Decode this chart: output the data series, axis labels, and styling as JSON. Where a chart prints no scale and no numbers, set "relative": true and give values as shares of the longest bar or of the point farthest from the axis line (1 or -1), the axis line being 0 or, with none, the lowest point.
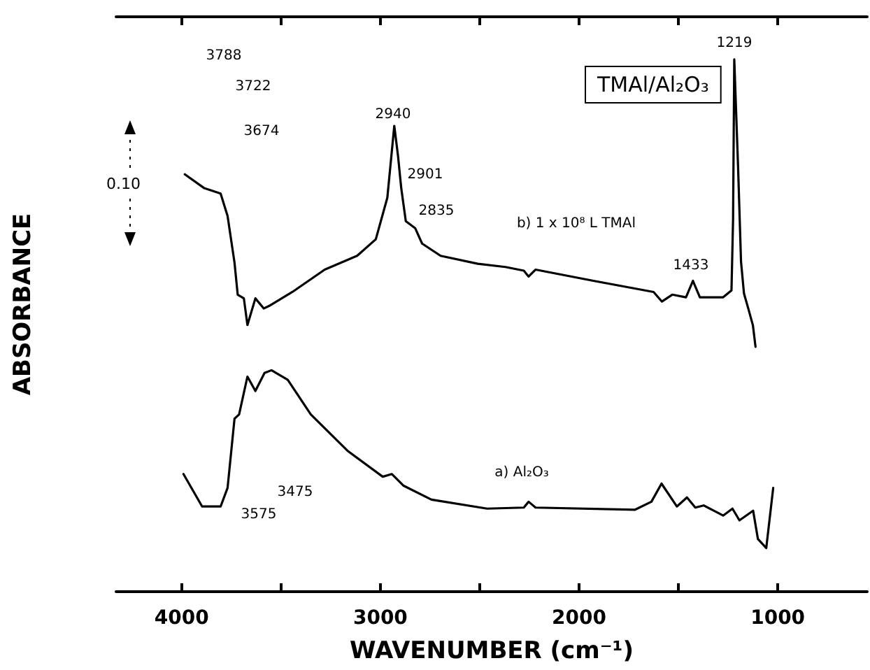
{
  "chart_data": {
    "type": "line",
    "title": "TMAl/Al₂O₃",
    "xlabel": "WAVENUMBER (cm⁻¹)",
    "ylabel": "ABSORBANCE",
    "relative": true,
    "grid": false,
    "marker": "none",
    "line_style": "solid",
    "xlim": [
      4330,
      550
    ],
    "xticks": [
      4000,
      {
        "value": 3500,
        "label": null
      },
      3000,
      {
        "value": 2500,
        "label": null
      },
      2000,
      {
        "value": 1500,
        "label": null
      },
      1000
    ],
    "series": [
      {
        "color": "#000000",
        "x": [
          3984,
          3886,
          3804,
          3769,
          3734,
          3718,
          3687,
          3669,
          3629,
          3587,
          3559,
          3443,
          3280,
          3117,
          3023,
          2965,
          2930,
          2911,
          2895,
          2872,
          2825,
          2790,
          2697,
          2510,
          2371,
          2278,
          2254,
          2219,
          1928,
          1625,
          1583,
          1531,
          1462,
          1427,
          1392,
          1275,
          1233,
          1225,
          1219,
          1200,
          1185,
          1170,
          1147,
          1125,
          1112
        ],
        "values": [
          0.784,
          0.758,
          0.748,
          0.706,
          0.618,
          0.558,
          0.551,
          0.501,
          0.551,
          0.532,
          0.537,
          0.563,
          0.605,
          0.631,
          0.662,
          0.74,
          0.875,
          0.818,
          0.758,
          0.696,
          0.683,
          0.654,
          0.631,
          0.616,
          0.61,
          0.603,
          0.592,
          0.605,
          0.584,
          0.563,
          0.545,
          0.558,
          0.553,
          0.584,
          0.553,
          0.553,
          0.566,
          0.7,
          1.0,
          0.8,
          0.62,
          0.56,
          0.53,
          0.5,
          0.46
        ]
      },
      {
        "color": "#000000",
        "x": [
          3991,
          3897,
          3804,
          3769,
          3734,
          3711,
          3669,
          3629,
          3583,
          3548,
          3466,
          3350,
          3163,
          2988,
          2942,
          2883,
          2743,
          2463,
          2278,
          2254,
          2219,
          1718,
          1636,
          1585,
          1508,
          1457,
          1415,
          1373,
          1275,
          1228,
          1193,
          1124,
          1100,
          1058,
          1023
        ],
        "values": [
          0.221,
          0.16,
          0.16,
          0.195,
          0.325,
          0.333,
          0.404,
          0.377,
          0.411,
          0.416,
          0.398,
          0.333,
          0.264,
          0.216,
          0.221,
          0.199,
          0.173,
          0.156,
          0.158,
          0.169,
          0.158,
          0.154,
          0.169,
          0.203,
          0.16,
          0.177,
          0.158,
          0.162,
          0.143,
          0.156,
          0.134,
          0.152,
          0.099,
          0.082,
          0.195
        ]
      }
    ],
    "annotations": [
      "0.10",
      "3788",
      "3722",
      "3674",
      "2940",
      "2901",
      "2835",
      "1219",
      "1433",
      "3575",
      "3475",
      "b) 1 x 10⁸ L TMAl",
      "a) Al₂O₃"
    ]
  }
}
